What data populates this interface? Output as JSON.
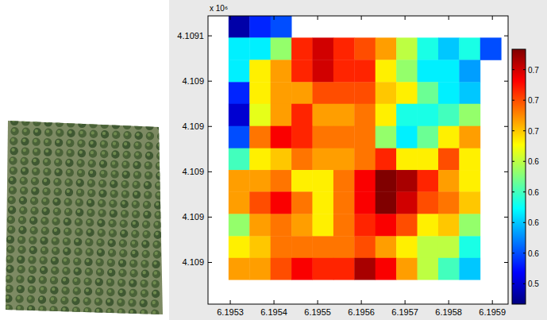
{
  "chart_data": {
    "type": "heatmap",
    "y_scale_label": "x 10⁶",
    "x": [
      6.19532,
      6.195368,
      6.195416,
      6.195464,
      6.195512,
      6.19556,
      6.195608,
      6.195656,
      6.195704,
      6.195752,
      6.1958,
      6.195848,
      6.195896
    ],
    "y": [
      4.10911,
      4.109086,
      4.109061,
      4.109037,
      4.109013,
      4.108988,
      4.108964,
      4.10894,
      4.108916,
      4.108891,
      4.108867,
      4.108843
    ],
    "cells": [
      [
        0.51,
        0.54,
        0.55,
        null,
        null,
        null,
        null,
        null,
        null,
        null,
        null,
        null,
        null
      ],
      [
        0.59,
        0.59,
        0.63,
        0.71,
        0.73,
        0.71,
        0.7,
        0.68,
        0.64,
        0.6,
        0.58,
        0.6,
        0.55
      ],
      [
        0.59,
        0.66,
        0.68,
        0.71,
        0.73,
        0.71,
        0.71,
        0.66,
        0.63,
        0.59,
        0.59,
        0.57,
        null
      ],
      [
        0.54,
        0.66,
        0.68,
        0.68,
        0.7,
        0.7,
        0.7,
        0.67,
        0.66,
        0.62,
        0.59,
        0.58,
        null
      ],
      [
        0.52,
        0.65,
        0.68,
        0.71,
        0.68,
        0.68,
        0.69,
        0.66,
        0.6,
        0.6,
        0.61,
        0.63,
        null
      ],
      [
        0.55,
        0.69,
        0.72,
        0.71,
        0.69,
        0.69,
        0.69,
        0.63,
        0.59,
        0.62,
        0.66,
        0.68,
        null
      ],
      [
        0.61,
        0.66,
        0.67,
        0.69,
        0.68,
        0.68,
        0.69,
        0.71,
        0.66,
        0.66,
        0.7,
        0.66,
        null
      ],
      [
        0.68,
        0.68,
        0.69,
        0.66,
        0.66,
        0.69,
        0.72,
        0.75,
        0.74,
        0.71,
        0.68,
        0.66,
        null
      ],
      [
        0.68,
        0.7,
        0.72,
        0.69,
        0.66,
        0.69,
        0.72,
        0.75,
        0.73,
        0.7,
        0.69,
        0.67,
        null
      ],
      [
        0.63,
        0.68,
        0.69,
        0.68,
        0.66,
        0.69,
        0.71,
        0.72,
        0.7,
        0.66,
        0.67,
        0.63,
        null
      ],
      [
        0.66,
        0.67,
        0.69,
        0.69,
        0.69,
        0.69,
        0.7,
        0.68,
        0.66,
        0.64,
        0.64,
        0.6,
        null
      ],
      [
        0.68,
        0.68,
        0.7,
        0.72,
        0.71,
        0.71,
        0.74,
        0.72,
        0.68,
        0.64,
        0.61,
        0.58,
        null
      ]
    ],
    "xlim": [
      6.195249,
      6.195936
    ],
    "ylim": [
      4.108804,
      4.109122
    ],
    "xticks": [
      6.1953,
      6.1954,
      6.1955,
      6.1956,
      6.1957,
      6.1958,
      6.1959
    ],
    "yticks": [
      4.1091,
      {
        "value": 4.10905,
        "label": "4.109"
      },
      {
        "value": 4.109,
        "label": "4.109"
      },
      {
        "value": 4.10895,
        "label": "4.109"
      },
      {
        "value": 4.1089,
        "label": "4.109"
      },
      {
        "value": 4.10885,
        "label": "4.109"
      }
    ],
    "colorbar": {
      "range": [
        0.5,
        0.75
      ],
      "ticks": [
        {
          "value": 0.52,
          "label": "0.5"
        },
        {
          "value": 0.55,
          "label": "0.6"
        },
        {
          "value": 0.58,
          "label": "0.6"
        },
        {
          "value": 0.61,
          "label": "0.6"
        },
        {
          "value": 0.64,
          "label": "0.6"
        },
        {
          "value": 0.67,
          "label": "0.7"
        },
        {
          "value": 0.7,
          "label": "0.7"
        },
        {
          "value": 0.73,
          "label": "0.7"
        }
      ]
    }
  }
}
